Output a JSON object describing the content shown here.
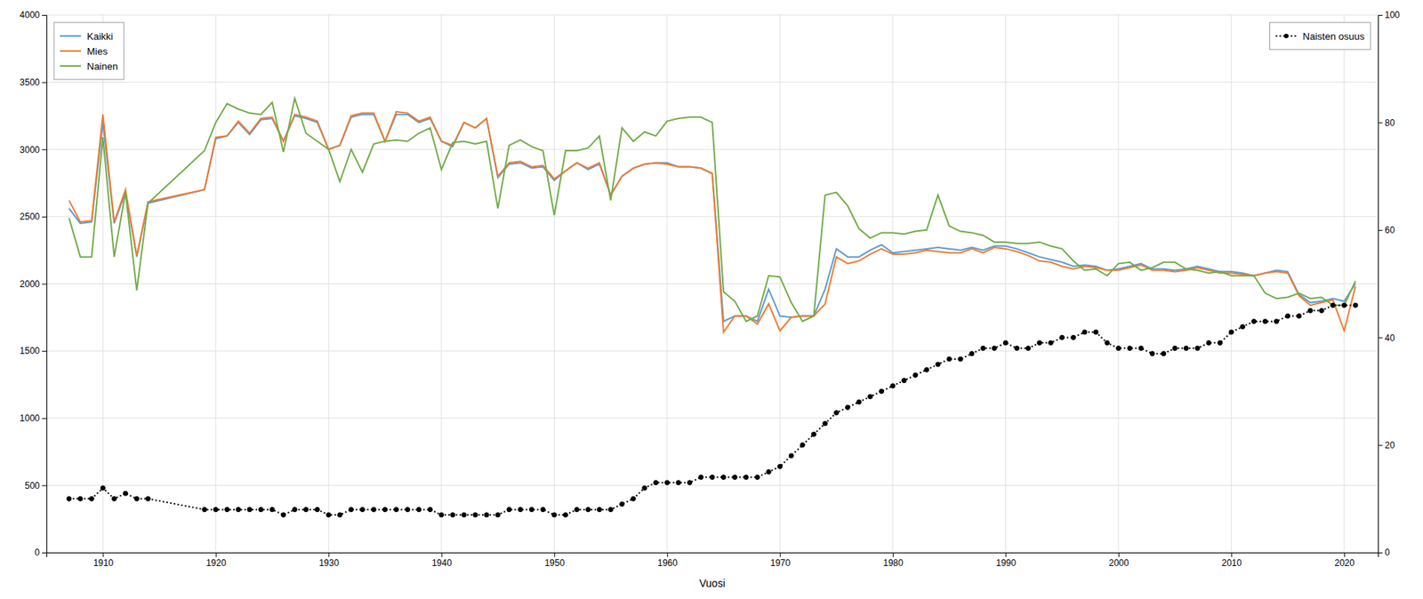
{
  "chart_data": {
    "type": "line",
    "xlabel": "Vuosi",
    "x": [
      1907,
      1908,
      1909,
      1910,
      1911,
      1912,
      1913,
      1914,
      1919,
      1920,
      1921,
      1922,
      1923,
      1924,
      1925,
      1926,
      1927,
      1928,
      1929,
      1930,
      1931,
      1932,
      1933,
      1934,
      1935,
      1936,
      1937,
      1938,
      1939,
      1940,
      1941,
      1942,
      1943,
      1944,
      1945,
      1946,
      1947,
      1948,
      1949,
      1950,
      1951,
      1952,
      1953,
      1954,
      1955,
      1956,
      1957,
      1958,
      1959,
      1960,
      1961,
      1962,
      1963,
      1964,
      1965,
      1966,
      1967,
      1968,
      1969,
      1970,
      1971,
      1972,
      1973,
      1974,
      1975,
      1976,
      1977,
      1978,
      1979,
      1980,
      1981,
      1982,
      1983,
      1984,
      1985,
      1986,
      1987,
      1988,
      1989,
      1990,
      1991,
      1992,
      1993,
      1994,
      1995,
      1996,
      1997,
      1998,
      1999,
      2000,
      2001,
      2002,
      2003,
      2004,
      2005,
      2006,
      2007,
      2008,
      2009,
      2010,
      2011,
      2012,
      2013,
      2014,
      2015,
      2016,
      2017,
      2018,
      2019,
      2020,
      2021
    ],
    "series": [
      {
        "name": "Kaikki",
        "color": "#5b9bd5",
        "line_style": "solid",
        "values": [
          2560,
          2450,
          2460,
          3200,
          2450,
          2680,
          2200,
          2600,
          2700,
          3080,
          3100,
          3200,
          3110,
          3220,
          3230,
          3060,
          3250,
          3230,
          3200,
          3000,
          3030,
          3240,
          3260,
          3260,
          3060,
          3260,
          3260,
          3200,
          3230,
          3060,
          3020,
          3200,
          3160,
          3230,
          2790,
          2890,
          2900,
          2860,
          2870,
          2770,
          2840,
          2900,
          2850,
          2890,
          2660,
          2800,
          2860,
          2890,
          2900,
          2900,
          2870,
          2870,
          2860,
          2820,
          1720,
          1760,
          1760,
          1720,
          1960,
          1760,
          1750,
          1760,
          1760,
          1960,
          2260,
          2200,
          2200,
          2250,
          2290,
          2230,
          2240,
          2250,
          2260,
          2270,
          2260,
          2250,
          2270,
          2250,
          2280,
          2280,
          2260,
          2230,
          2200,
          2180,
          2160,
          2130,
          2140,
          2130,
          2100,
          2110,
          2130,
          2150,
          2110,
          2110,
          2100,
          2110,
          2130,
          2110,
          2090,
          2090,
          2080,
          2060,
          2080,
          2100,
          2090,
          1920,
          1860,
          1870,
          1890,
          1870,
          2000
        ]
      },
      {
        "name": "Mies",
        "color": "#ed7d31",
        "line_style": "solid",
        "values": [
          2620,
          2460,
          2470,
          3260,
          2460,
          2700,
          2210,
          2610,
          2700,
          3090,
          3100,
          3210,
          3120,
          3230,
          3240,
          3060,
          3260,
          3240,
          3210,
          3000,
          3030,
          3250,
          3270,
          3270,
          3060,
          3280,
          3270,
          3210,
          3240,
          3060,
          3030,
          3200,
          3160,
          3230,
          2800,
          2900,
          2910,
          2870,
          2880,
          2780,
          2840,
          2900,
          2860,
          2900,
          2660,
          2800,
          2860,
          2890,
          2900,
          2890,
          2870,
          2870,
          2860,
          2820,
          1640,
          1760,
          1760,
          1700,
          1850,
          1650,
          1750,
          1760,
          1760,
          1850,
          2200,
          2150,
          2170,
          2220,
          2260,
          2220,
          2220,
          2230,
          2250,
          2240,
          2230,
          2230,
          2260,
          2230,
          2270,
          2260,
          2240,
          2210,
          2170,
          2160,
          2130,
          2110,
          2130,
          2120,
          2100,
          2100,
          2120,
          2140,
          2100,
          2100,
          2090,
          2100,
          2120,
          2100,
          2080,
          2080,
          2070,
          2060,
          2080,
          2090,
          2080,
          1910,
          1840,
          1860,
          1880,
          1650,
          1980
        ]
      },
      {
        "name": "Nainen",
        "color": "#70ad47",
        "line_style": "solid",
        "values": [
          2490,
          2200,
          2200,
          3090,
          2200,
          2680,
          1950,
          2600,
          2990,
          3200,
          3340,
          3300,
          3270,
          3260,
          3350,
          2980,
          3380,
          3120,
          3060,
          3000,
          2760,
          3000,
          2830,
          3040,
          3060,
          3070,
          3060,
          3120,
          3160,
          2850,
          3050,
          3060,
          3040,
          3060,
          2560,
          3030,
          3070,
          3020,
          2990,
          2510,
          2990,
          2990,
          3010,
          3100,
          2620,
          3160,
          3060,
          3130,
          3100,
          3210,
          3230,
          3240,
          3240,
          3200,
          1940,
          1870,
          1720,
          1760,
          2060,
          2050,
          1860,
          1720,
          1760,
          2660,
          2680,
          2580,
          2410,
          2340,
          2380,
          2380,
          2370,
          2390,
          2400,
          2660,
          2430,
          2390,
          2380,
          2360,
          2310,
          2310,
          2300,
          2300,
          2310,
          2280,
          2260,
          2170,
          2100,
          2110,
          2060,
          2150,
          2160,
          2100,
          2120,
          2160,
          2160,
          2110,
          2100,
          2080,
          2090,
          2060,
          2060,
          2060,
          1930,
          1890,
          1900,
          1930,
          1890,
          1900,
          1840,
          1840,
          2020
        ]
      },
      {
        "name": "Naisten osuus",
        "color": "#000000",
        "axis": "y2",
        "line_style": "dotted",
        "marker": "circle",
        "values": [
          10,
          10,
          10,
          12,
          10,
          11,
          10,
          10,
          8,
          8,
          8,
          8,
          8,
          8,
          8,
          7,
          8,
          8,
          8,
          7,
          7,
          8,
          8,
          8,
          8,
          8,
          8,
          8,
          8,
          7,
          7,
          7,
          7,
          7,
          7,
          8,
          8,
          8,
          8,
          7,
          7,
          8,
          8,
          8,
          8,
          9,
          10,
          12,
          13,
          13,
          13,
          13,
          14,
          14,
          14,
          14,
          14,
          14,
          15,
          16,
          18,
          20,
          22,
          24,
          26,
          27,
          28,
          29,
          30,
          31,
          32,
          33,
          34,
          35,
          36,
          36,
          37,
          38,
          38,
          39,
          38,
          38,
          39,
          39,
          40,
          40,
          41,
          41,
          39,
          38,
          38,
          38,
          37,
          37,
          38,
          38,
          38,
          39,
          39,
          41,
          42,
          43,
          43,
          43,
          44,
          44,
          45,
          45,
          46,
          46,
          46
        ]
      }
    ],
    "xlim": [
      1905,
      2023
    ],
    "xticks": [
      1910,
      1920,
      1930,
      1940,
      1950,
      1960,
      1970,
      1980,
      1990,
      2000,
      2010,
      2020
    ],
    "ylim": [
      0,
      4000
    ],
    "yticks": [
      0,
      500,
      1000,
      1500,
      2000,
      2500,
      3000,
      3500,
      4000
    ],
    "y2lim": [
      0,
      100
    ],
    "y2ticks": [
      0,
      20,
      40,
      60,
      80,
      100
    ],
    "grid": true,
    "legend": "upper left"
  }
}
